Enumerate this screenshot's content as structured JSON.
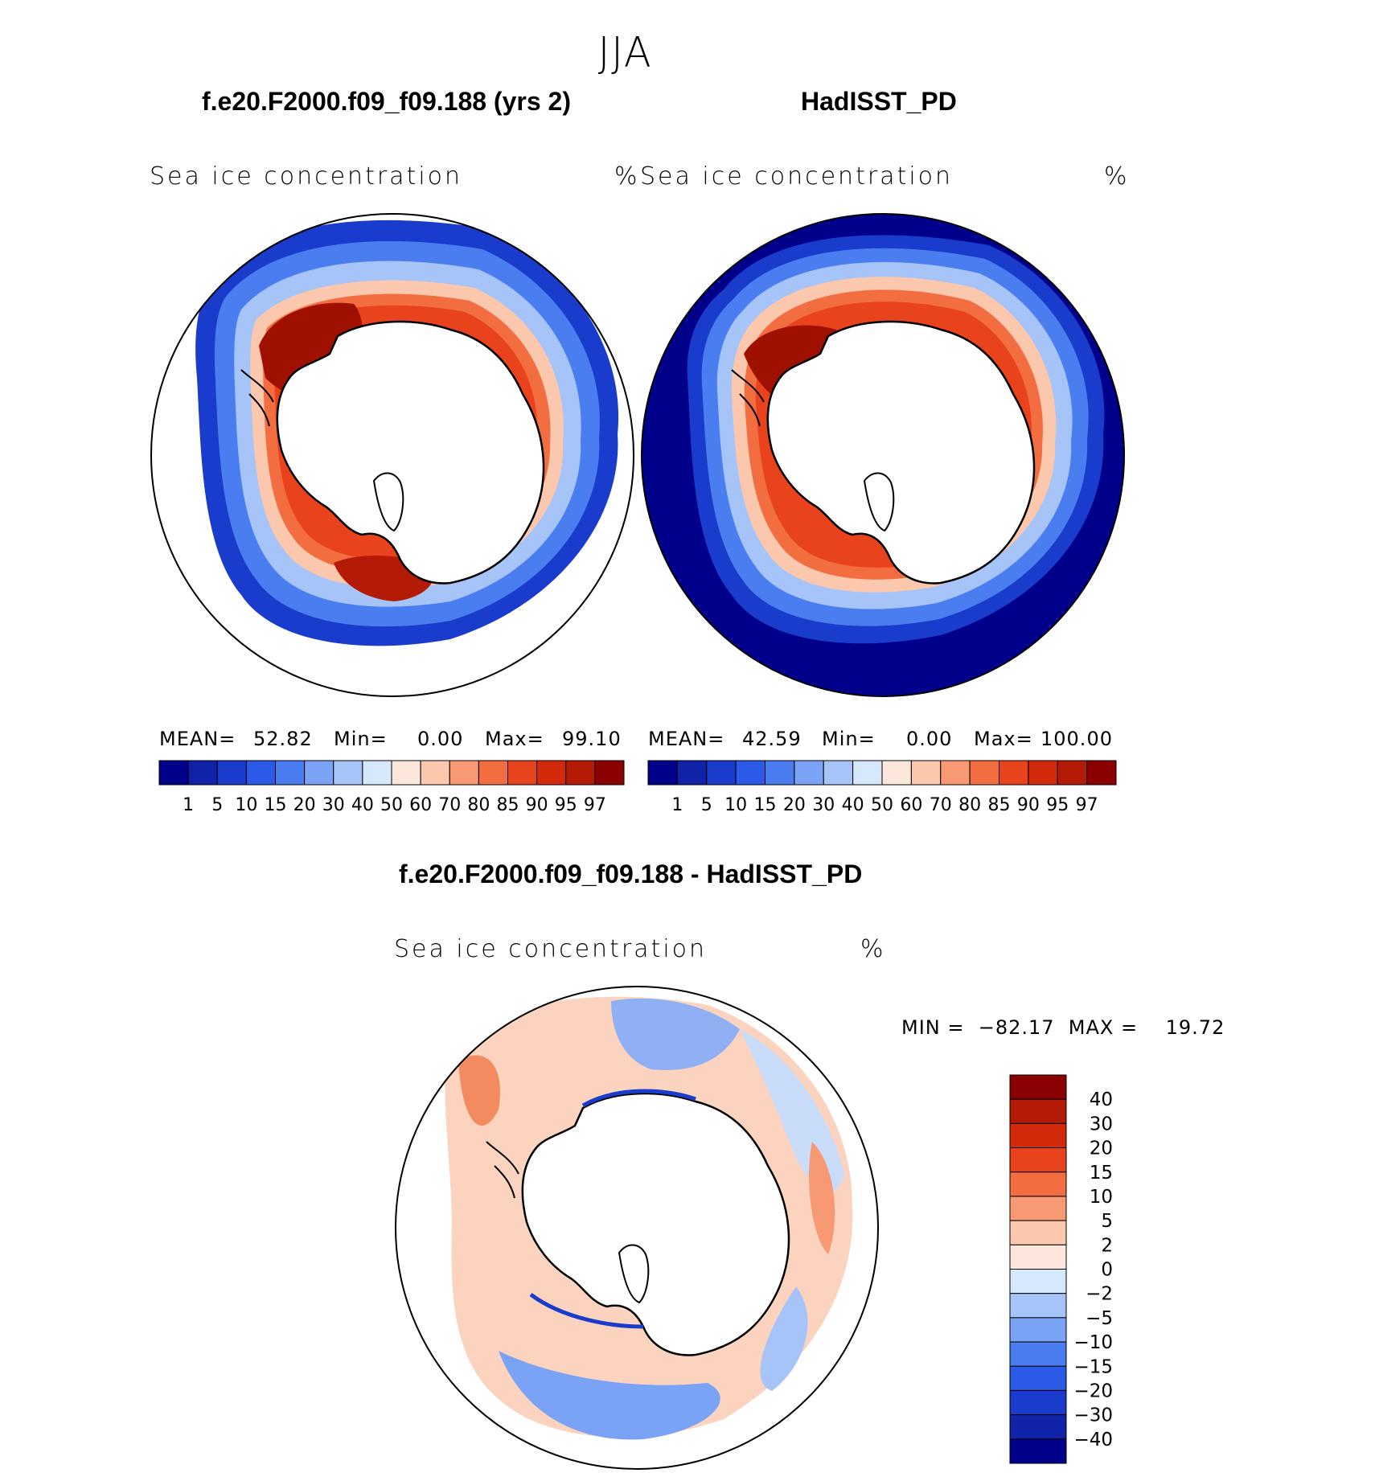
{
  "season": "JJA",
  "panels": [
    {
      "title": "f.e20.F2000.f09_f09.188 (yrs 2)",
      "variable": "Sea ice concentration",
      "units": "%",
      "stats": {
        "mean_label": "MEAN=",
        "mean": "52.82",
        "min_label": "Min=",
        "min": "0.00",
        "max_label": "Max=",
        "max": "99.10"
      },
      "colorbar": {
        "levels": [
          "1",
          "5",
          "10",
          "15",
          "20",
          "30",
          "40",
          "50",
          "60",
          "70",
          "80",
          "85",
          "90",
          "95",
          "97"
        ],
        "colors": [
          "#00008b",
          "#0f22a8",
          "#1a3ccc",
          "#2a5ae6",
          "#4a7ef0",
          "#7aa3f5",
          "#a7c4f8",
          "#d6e8fb",
          "#fde7dc",
          "#fbc7ad",
          "#f79a73",
          "#f26d40",
          "#e8431c",
          "#d42a0c",
          "#b41b06",
          "#8b0000"
        ]
      }
    },
    {
      "title": "HadISST_PD",
      "variable": "Sea ice concentration",
      "units": "%",
      "stats": {
        "mean_label": "MEAN=",
        "mean": "42.59",
        "min_label": "Min=",
        "min": "0.00",
        "max_label": "Max=",
        "max": "100.00"
      },
      "colorbar": {
        "levels": [
          "1",
          "5",
          "10",
          "15",
          "20",
          "30",
          "40",
          "50",
          "60",
          "70",
          "80",
          "85",
          "90",
          "95",
          "97"
        ],
        "colors": [
          "#00008b",
          "#0f22a8",
          "#1a3ccc",
          "#2a5ae6",
          "#4a7ef0",
          "#7aa3f5",
          "#a7c4f8",
          "#d6e8fb",
          "#fde7dc",
          "#fbc7ad",
          "#f79a73",
          "#f26d40",
          "#e8431c",
          "#d42a0c",
          "#b41b06",
          "#8b0000"
        ]
      }
    }
  ],
  "difference": {
    "title": "f.e20.F2000.f09_f09.188 - HadISST_PD",
    "variable": "Sea ice concentration",
    "units": "%",
    "minmax_text": "MIN =  −82.17  MAX =    19.72",
    "colorbar": {
      "levels": [
        "40",
        "30",
        "20",
        "15",
        "10",
        "5",
        "2",
        "0",
        "−2",
        "−5",
        "−10",
        "−15",
        "−20",
        "−30",
        "−40"
      ],
      "colors": [
        "#8b0000",
        "#b41b06",
        "#d42a0c",
        "#e8431c",
        "#f26d40",
        "#f79a73",
        "#fbc7ad",
        "#fde7dc",
        "#d6e8fb",
        "#a7c4f8",
        "#7aa3f5",
        "#4a7ef0",
        "#2a5ae6",
        "#1a3ccc",
        "#0f22a8",
        "#00008b"
      ]
    }
  },
  "colors": {
    "land": "#ffffff",
    "coast": "#000000",
    "deep_blue": "#00008b",
    "ice_red": "#e8431c",
    "ice_dark": "#a01000",
    "diff_red": "#f4a585",
    "diff_blue": "#8fb0f5"
  }
}
